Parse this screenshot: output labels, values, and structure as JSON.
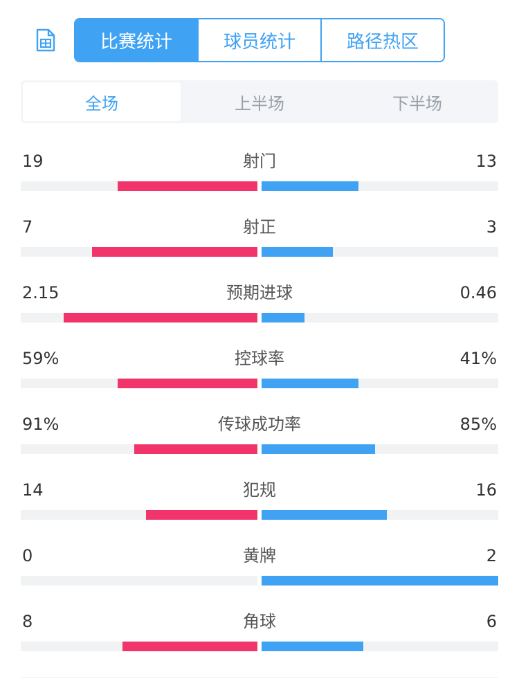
{
  "tabs": {
    "items": [
      "比赛统计",
      "球员统计",
      "路径热区"
    ],
    "active_index": 0
  },
  "periods": {
    "items": [
      "全场",
      "上半场",
      "下半场"
    ],
    "active_index": 0
  },
  "colors": {
    "accent": "#3fa2f2",
    "home": "#f2346d",
    "away": "#3fa2f2",
    "track": "#f1f2f4"
  },
  "icons": {
    "left_tool": "document-icon"
  },
  "stats": [
    {
      "label": "射门",
      "left": "19",
      "right": "13",
      "left_ratio": 0.59,
      "right_ratio": 0.41
    },
    {
      "label": "射正",
      "left": "7",
      "right": "3",
      "left_ratio": 0.7,
      "right_ratio": 0.3
    },
    {
      "label": "预期进球",
      "left": "2.15",
      "right": "0.46",
      "left_ratio": 0.82,
      "right_ratio": 0.18
    },
    {
      "label": "控球率",
      "left": "59%",
      "right": "41%",
      "left_ratio": 0.59,
      "right_ratio": 0.41
    },
    {
      "label": "传球成功率",
      "left": "91%",
      "right": "85%",
      "left_ratio": 0.52,
      "right_ratio": 0.48
    },
    {
      "label": "犯规",
      "left": "14",
      "right": "16",
      "left_ratio": 0.47,
      "right_ratio": 0.53
    },
    {
      "label": "黄牌",
      "left": "0",
      "right": "2",
      "left_ratio": 0.0,
      "right_ratio": 1.0
    },
    {
      "label": "角球",
      "left": "8",
      "right": "6",
      "left_ratio": 0.57,
      "right_ratio": 0.43
    }
  ]
}
